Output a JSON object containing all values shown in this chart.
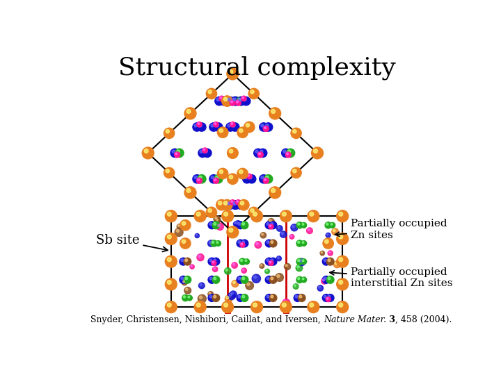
{
  "title": "Structural complexity",
  "title_fontsize": 26,
  "bg_color": "#ffffff",
  "black_color": "#000000",
  "label_sb": "Sb site",
  "label_partially_zn": "Partially occupied\nZn sites",
  "label_interstitial": "Partially occupied\ninterstitial Zn sites",
  "citation_normal": "Snyder, Christensen, Nishibori, Caillat, and Iversen, ",
  "citation_italic": "Nature Mater.",
  "citation_bold": " 3",
  "citation_end": ", 458 (2004).",
  "orange": "#E88020",
  "blue": "#1010CC",
  "pink": "#FF1493",
  "green": "#22AA22",
  "brown": "#8B5020",
  "red_line": "#CC0000"
}
